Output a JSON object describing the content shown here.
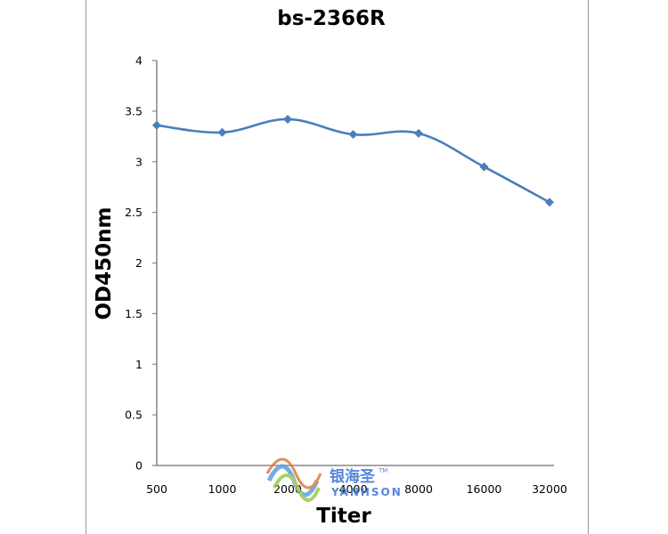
{
  "chart_data": {
    "type": "line",
    "title": "bs-2366R",
    "xlabel": "Titer",
    "ylabel": "OD450nm",
    "categories": [
      "500",
      "1000",
      "2000",
      "4000",
      "8000",
      "16000",
      "32000"
    ],
    "series": [
      {
        "values": [
          3.36,
          3.29,
          3.42,
          3.27,
          3.28,
          2.95,
          2.6
        ]
      }
    ],
    "ylim": [
      0,
      4
    ],
    "yticks": [
      "0",
      "0.5",
      "1",
      "1.5",
      "2",
      "2.5",
      "3",
      "3.5",
      "4"
    ],
    "grid": false,
    "line_color": "#4a7ebb",
    "marker": "diamond"
  },
  "watermark": {
    "brand_cn": "银海圣",
    "brand_en": "YANHSON",
    "tm": "TM"
  }
}
